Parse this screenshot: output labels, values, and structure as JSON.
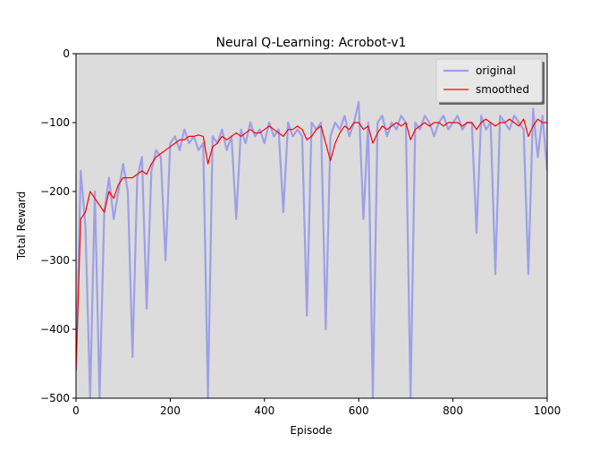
{
  "chart_data": {
    "type": "line",
    "title": "Neural Q-Learning: Acrobot-v1",
    "x_label": "Episode",
    "y_label": "Total Reward",
    "x": [
      0,
      10,
      20,
      30,
      40,
      50,
      60,
      70,
      80,
      90,
      100,
      110,
      120,
      130,
      140,
      150,
      160,
      170,
      180,
      190,
      200,
      210,
      220,
      230,
      240,
      250,
      260,
      270,
      280,
      290,
      300,
      310,
      320,
      330,
      340,
      350,
      360,
      370,
      380,
      390,
      400,
      410,
      420,
      430,
      440,
      450,
      460,
      470,
      480,
      490,
      500,
      510,
      520,
      530,
      540,
      550,
      560,
      570,
      580,
      590,
      600,
      610,
      620,
      630,
      640,
      650,
      660,
      670,
      680,
      690,
      700,
      710,
      720,
      730,
      740,
      750,
      760,
      770,
      780,
      790,
      800,
      810,
      820,
      830,
      840,
      850,
      860,
      870,
      880,
      890,
      900,
      910,
      920,
      930,
      940,
      950,
      960,
      970,
      980,
      990,
      1000
    ],
    "series": [
      {
        "name": "original",
        "color": "#9f9fe8",
        "width": 2.2,
        "values": [
          -460,
          -170,
          -250,
          -500,
          -200,
          -500,
          -230,
          -180,
          -240,
          -200,
          -160,
          -200,
          -440,
          -180,
          -150,
          -370,
          -170,
          -140,
          -150,
          -300,
          -130,
          -120,
          -140,
          -110,
          -130,
          -120,
          -140,
          -130,
          -500,
          -120,
          -130,
          -110,
          -140,
          -120,
          -240,
          -110,
          -130,
          -100,
          -120,
          -110,
          -130,
          -100,
          -120,
          -110,
          -230,
          -100,
          -120,
          -110,
          -120,
          -380,
          -100,
          -110,
          -100,
          -400,
          -120,
          -100,
          -110,
          -90,
          -120,
          -100,
          -70,
          -240,
          -100,
          -500,
          -100,
          -90,
          -120,
          -100,
          -110,
          -90,
          -100,
          -500,
          -100,
          -110,
          -90,
          -100,
          -120,
          -100,
          -90,
          -110,
          -100,
          -90,
          -110,
          -100,
          -100,
          -260,
          -90,
          -110,
          -100,
          -320,
          -90,
          -100,
          -110,
          -90,
          -100,
          -110,
          -320,
          -80,
          -150,
          -90,
          -170
        ]
      },
      {
        "name": "smoothed",
        "color": "#ff0000",
        "width": 1.2,
        "values": [
          -460,
          -240,
          -230,
          -200,
          -210,
          -220,
          -230,
          -200,
          -210,
          -190,
          -180,
          -180,
          -180,
          -175,
          -170,
          -175,
          -160,
          -150,
          -145,
          -140,
          -135,
          -130,
          -125,
          -125,
          -120,
          -120,
          -118,
          -120,
          -160,
          -135,
          -130,
          -120,
          -125,
          -120,
          -115,
          -120,
          -115,
          -110,
          -115,
          -115,
          -110,
          -105,
          -110,
          -115,
          -120,
          -110,
          -110,
          -105,
          -110,
          -125,
          -120,
          -110,
          -105,
          -130,
          -155,
          -130,
          -115,
          -105,
          -110,
          -100,
          -100,
          -110,
          -105,
          -130,
          -115,
          -105,
          -110,
          -105,
          -100,
          -105,
          -100,
          -125,
          -110,
          -105,
          -100,
          -105,
          -100,
          -100,
          -105,
          -100,
          -100,
          -100,
          -105,
          -100,
          -100,
          -110,
          -100,
          -95,
          -100,
          -105,
          -100,
          -100,
          -95,
          -100,
          -105,
          -95,
          -120,
          -105,
          -95,
          -100,
          -100
        ]
      }
    ],
    "xlim": [
      0,
      1000
    ],
    "xticks": [
      0,
      200,
      400,
      600,
      800,
      1000
    ],
    "ylim": [
      -500,
      0
    ],
    "yticks": [
      {
        "value": -500,
        "label": "−500"
      },
      {
        "value": -400,
        "label": "−400"
      },
      {
        "value": -300,
        "label": "−300"
      },
      {
        "value": -200,
        "label": "−200"
      },
      {
        "value": -100,
        "label": "−100"
      },
      0
    ],
    "legend": "upper right",
    "background": "#dcdcdc"
  }
}
